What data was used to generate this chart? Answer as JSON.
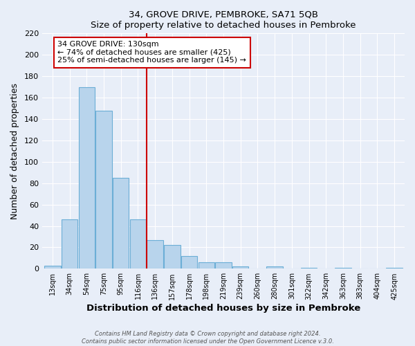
{
  "title": "34, GROVE DRIVE, PEMBROKE, SA71 5QB",
  "subtitle": "Size of property relative to detached houses in Pembroke",
  "xlabel": "Distribution of detached houses by size in Pembroke",
  "ylabel": "Number of detached properties",
  "bin_labels": [
    "13sqm",
    "34sqm",
    "54sqm",
    "75sqm",
    "95sqm",
    "116sqm",
    "136sqm",
    "157sqm",
    "178sqm",
    "198sqm",
    "219sqm",
    "239sqm",
    "260sqm",
    "280sqm",
    "301sqm",
    "322sqm",
    "342sqm",
    "363sqm",
    "383sqm",
    "404sqm",
    "425sqm"
  ],
  "bar_values": [
    3,
    46,
    170,
    148,
    85,
    46,
    27,
    22,
    12,
    6,
    6,
    2,
    0,
    2,
    0,
    1,
    0,
    1,
    0,
    0,
    1
  ],
  "bar_color": "#b8d4ec",
  "bar_edge_color": "#6baed6",
  "vline_color": "#cc0000",
  "vline_index": 6,
  "annotation_title": "34 GROVE DRIVE: 130sqm",
  "annotation_line1": "← 74% of detached houses are smaller (425)",
  "annotation_line2": "25% of semi-detached houses are larger (145) →",
  "annotation_box_color": "#ffffff",
  "annotation_box_edge": "#cc0000",
  "ylim": [
    0,
    220
  ],
  "yticks": [
    0,
    20,
    40,
    60,
    80,
    100,
    120,
    140,
    160,
    180,
    200,
    220
  ],
  "bg_color": "#e8eef8",
  "footer1": "Contains HM Land Registry data © Crown copyright and database right 2024.",
  "footer2": "Contains public sector information licensed under the Open Government Licence v.3.0."
}
